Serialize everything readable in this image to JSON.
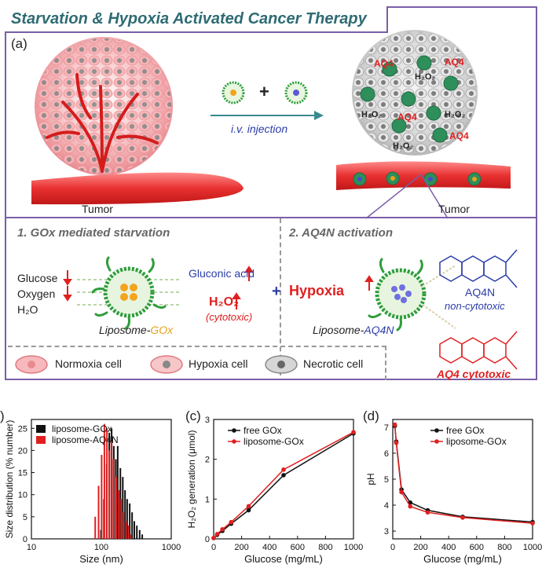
{
  "title": "Starvation & Hypoxia Activated Cancer Therapy",
  "panel_a": {
    "label": "(a)",
    "tumor_left": "Tumor",
    "tumor_right": "Tumor",
    "injection": "i.v. injection",
    "plus": "+",
    "tags": [
      "AQ4",
      "AQ4",
      "AQ4",
      "AQ4",
      "H₂O₂",
      "H₂O₂",
      "H₂O₂",
      "H₂O₂"
    ]
  },
  "section1": {
    "heading": "1. GOx mediated starvation",
    "inputs": [
      "Glucose",
      "Oxygen",
      "H₂O"
    ],
    "gluconic": "Gluconic acid",
    "h2o2": "H₂O₂",
    "cytotoxic": "(cytotoxic)",
    "liposome_prefix": "Liposome-",
    "liposome_suffix": "GOx"
  },
  "section2": {
    "heading": "2. AQ4N activation",
    "plus": "+",
    "hypoxia": "Hypoxia",
    "liposome_prefix": "Liposome-",
    "liposome_suffix": "AQ4N",
    "aq4n_name": "AQ4N",
    "aq4n_note": "non-cytotoxic",
    "aq4_name": "AQ4 cytotoxic"
  },
  "legend": {
    "items": [
      "Normoxia cell",
      "Hypoxia cell",
      "Necrotic cell"
    ]
  },
  "panel_b": {
    "label": ")"
  },
  "panel_c": {
    "label": "(c)"
  },
  "panel_d": {
    "label": "(d)"
  },
  "colors": {
    "frame": "#7a5ea8",
    "title": "#2e6b73",
    "red": "#e02020",
    "blue": "#2b3da8",
    "teal": "#3a8a8f",
    "black_series": "#111111"
  },
  "chart_data": [
    {
      "type": "bar",
      "xlabel": "Size (nm)",
      "ylabel": "Size distribution (% number)",
      "x_scale": "log",
      "xlim": [
        10,
        1000
      ],
      "ylim": [
        0,
        27
      ],
      "xticks": [
        "10",
        "100",
        "1000"
      ],
      "yticks": [
        "0",
        "5",
        "10",
        "15",
        "20",
        "25"
      ],
      "legend": "top-left",
      "series": [
        {
          "name": "liposome-GOx",
          "color": "#111111",
          "x": [
            95,
            105,
            115,
            125,
            135,
            145,
            155,
            165,
            180,
            195,
            210,
            225,
            245,
            265,
            285,
            310,
            340,
            370
          ],
          "values": [
            2,
            9,
            17,
            24,
            25,
            21,
            18,
            21,
            16,
            14,
            11,
            9,
            8,
            6,
            4,
            3,
            2,
            1
          ]
        },
        {
          "name": "liposome-AQ4N",
          "color": "#e02020",
          "x": [
            85,
            95,
            105,
            115,
            125,
            135,
            145,
            155,
            170,
            185,
            200,
            215,
            235,
            255,
            275
          ],
          "values": [
            5,
            12,
            19,
            26,
            25,
            20,
            22,
            18,
            14,
            11,
            9,
            6,
            4,
            3,
            1
          ]
        }
      ]
    },
    {
      "type": "line",
      "xlabel": "Glucose (mg/mL)",
      "ylabel": "H₂O₂ generation (μmol)",
      "xlim": [
        0,
        1000
      ],
      "ylim": [
        0,
        3
      ],
      "xticks": [
        "0",
        "200",
        "400",
        "600",
        "800",
        "1000"
      ],
      "yticks": [
        "0",
        "1",
        "2",
        "3"
      ],
      "legend": "top-left",
      "x": [
        0,
        25,
        62.5,
        125,
        250,
        500,
        1000
      ],
      "series": [
        {
          "name": "free GOx",
          "color": "#111111",
          "values": [
            0.02,
            0.1,
            0.2,
            0.38,
            0.72,
            1.6,
            2.65
          ]
        },
        {
          "name": "liposome-GOx",
          "color": "#e02020",
          "values": [
            0.02,
            0.12,
            0.24,
            0.42,
            0.82,
            1.74,
            2.68
          ]
        }
      ]
    },
    {
      "type": "line",
      "xlabel": "Glucose (mg/mL)",
      "ylabel": "pH",
      "xlim": [
        0,
        1000
      ],
      "ylim": [
        2.7,
        7.3
      ],
      "xticks": [
        "0",
        "200",
        "400",
        "600",
        "800",
        "1000"
      ],
      "yticks": [
        "3",
        "4",
        "5",
        "6",
        "7"
      ],
      "legend": "top-right",
      "x": [
        15,
        25,
        62.5,
        125,
        250,
        500,
        1000
      ],
      "series": [
        {
          "name": "free GOx",
          "color": "#111111",
          "values": [
            7.05,
            6.45,
            4.6,
            4.1,
            3.8,
            3.55,
            3.35
          ]
        },
        {
          "name": "liposome-GOx",
          "color": "#e02020",
          "values": [
            7.1,
            6.4,
            4.5,
            3.95,
            3.72,
            3.52,
            3.3
          ]
        }
      ]
    }
  ]
}
